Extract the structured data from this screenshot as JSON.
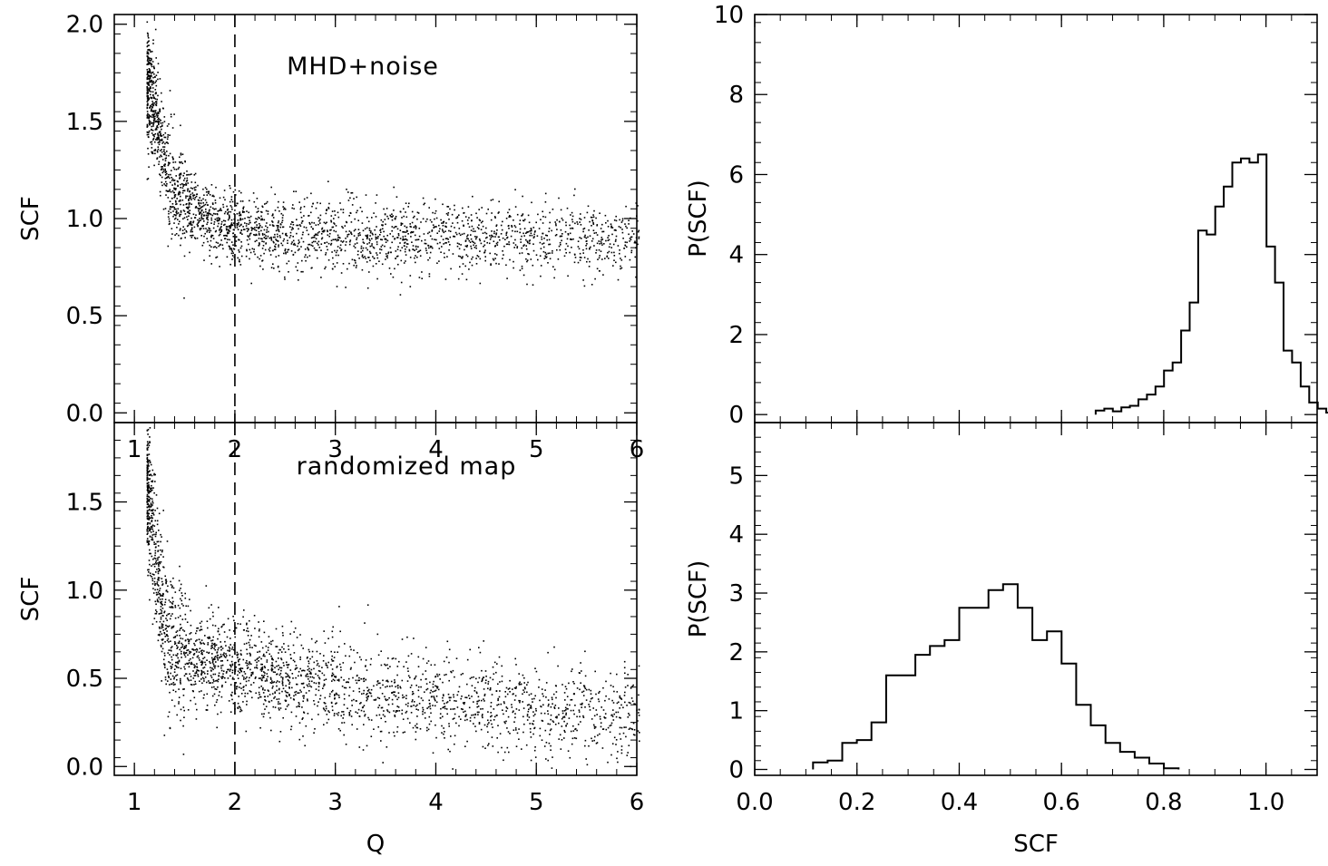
{
  "chart_data": [
    {
      "type": "scatter",
      "id": "top-left",
      "title": "",
      "annotation": "MHD+noise",
      "xlabel": "",
      "ylabel": "SCF",
      "xlim": [
        0.8,
        6.0
      ],
      "ylim": [
        -0.05,
        2.05
      ],
      "xticks": [
        1,
        2,
        3,
        4,
        5,
        6
      ],
      "yticks": [
        "0.0",
        "0.5",
        "1.0",
        "1.5",
        "2.0"
      ],
      "vline_x": 2.0,
      "trend": [
        [
          1.1,
          1.75
        ],
        [
          1.2,
          1.55
        ],
        [
          1.3,
          1.28
        ],
        [
          1.4,
          1.13
        ],
        [
          1.6,
          1.02
        ],
        [
          1.8,
          0.98
        ],
        [
          2.0,
          0.95
        ],
        [
          2.5,
          0.92
        ],
        [
          3.0,
          0.91
        ],
        [
          4.0,
          0.91
        ],
        [
          5.0,
          0.9
        ],
        [
          6.0,
          0.89
        ]
      ],
      "spread": 0.09,
      "n_points": 2600
    },
    {
      "type": "scatter",
      "id": "bottom-left",
      "title": "",
      "annotation": "randomized map",
      "xlabel": "Q",
      "ylabel": "SCF",
      "xlim": [
        0.8,
        6.0
      ],
      "ylim": [
        -0.05,
        1.95
      ],
      "xticks": [
        1,
        2,
        3,
        4,
        5,
        6
      ],
      "yticks": [
        "0.0",
        "0.5",
        "1.0",
        "1.5"
      ],
      "vline_x": 2.0,
      "trend": [
        [
          1.1,
          1.7
        ],
        [
          1.2,
          1.2
        ],
        [
          1.3,
          0.8
        ],
        [
          1.4,
          0.68
        ],
        [
          1.6,
          0.62
        ],
        [
          1.8,
          0.58
        ],
        [
          2.0,
          0.56
        ],
        [
          2.5,
          0.5
        ],
        [
          3.0,
          0.45
        ],
        [
          4.0,
          0.38
        ],
        [
          5.0,
          0.33
        ],
        [
          6.0,
          0.3
        ]
      ],
      "spread": 0.13,
      "n_points": 2600
    },
    {
      "type": "histogram",
      "id": "top-right",
      "title": "",
      "xlabel": "",
      "ylabel": "P(SCF)",
      "xlim": [
        0.0,
        1.1
      ],
      "ylim": [
        -0.2,
        10.0
      ],
      "yticks": [
        "0",
        "2",
        "4",
        "6",
        "8",
        "10"
      ],
      "bin_width": 0.0167,
      "bin_start": 0.667,
      "values": [
        0.1,
        0.15,
        0.08,
        0.18,
        0.22,
        0.38,
        0.5,
        0.7,
        1.1,
        1.3,
        2.1,
        2.8,
        4.6,
        4.5,
        5.2,
        5.7,
        6.3,
        6.4,
        6.3,
        6.5,
        4.2,
        3.3,
        1.6,
        1.3,
        0.7,
        0.3,
        0.15,
        0.05
      ]
    },
    {
      "type": "histogram",
      "id": "bottom-right",
      "title": "",
      "xlabel": "SCF",
      "ylabel": "P(SCF)",
      "xlim": [
        0.0,
        1.1
      ],
      "ylim": [
        -0.1,
        5.9
      ],
      "xticks": [
        "0.0",
        "0.2",
        "0.4",
        "0.6",
        "0.8",
        "1.0"
      ],
      "yticks": [
        "0",
        "1",
        "2",
        "3",
        "4",
        "5"
      ],
      "bin_width": 0.0286,
      "bin_start": 0.114,
      "values": [
        0.12,
        0.15,
        0.45,
        0.5,
        0.8,
        1.6,
        1.6,
        1.95,
        2.1,
        2.2,
        2.75,
        2.75,
        3.05,
        3.15,
        2.75,
        2.2,
        2.35,
        1.8,
        1.1,
        0.75,
        0.45,
        0.3,
        0.2,
        0.1,
        0.02
      ]
    }
  ]
}
